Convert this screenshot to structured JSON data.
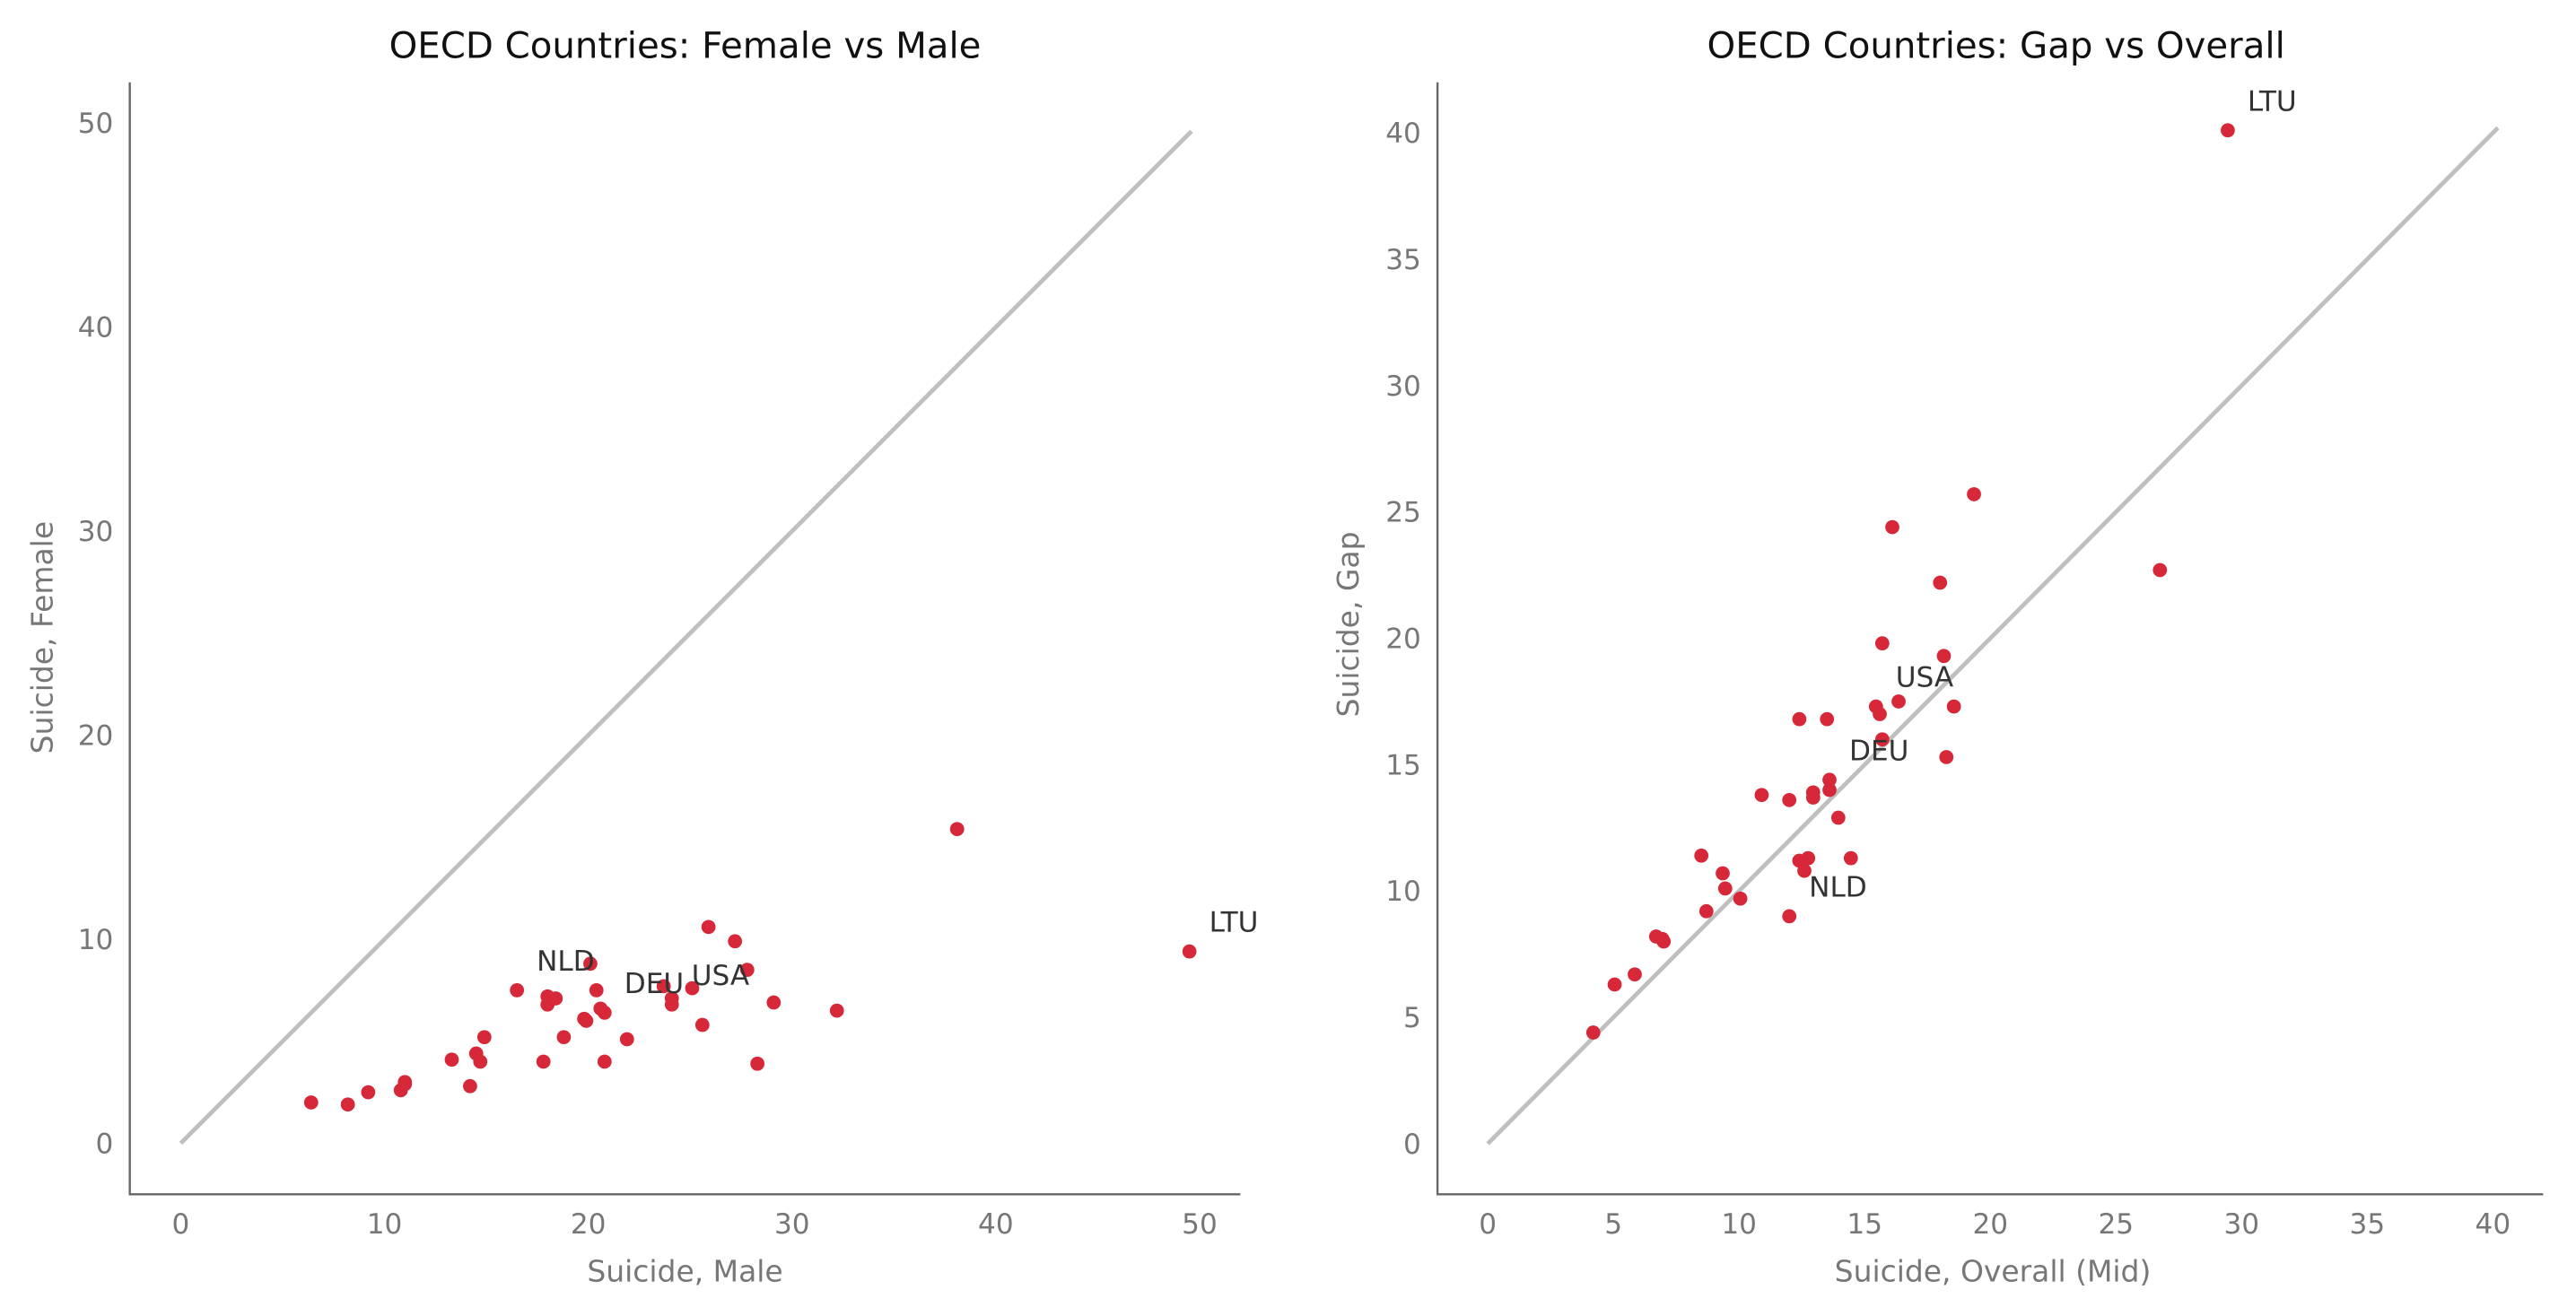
{
  "chart_data": [
    {
      "type": "scatter",
      "title": "OECD Countries: Female vs Male",
      "xlabel": "Suicide, Male",
      "ylabel": "Suicide, Female",
      "xlim": [
        -2.5,
        52
      ],
      "ylim": [
        -2.5,
        52
      ],
      "xticks": [
        0,
        10,
        20,
        30,
        40,
        50
      ],
      "yticks": [
        0,
        10,
        20,
        30,
        40,
        50
      ],
      "reference_line": {
        "from": [
          0,
          0
        ],
        "to": [
          49.6,
          49.6
        ]
      },
      "grid": false,
      "point_color": "#d62839",
      "line_color": "#bfbfbf",
      "points": [
        [
          6.4,
          2.0
        ],
        [
          8.2,
          1.9
        ],
        [
          9.2,
          2.5
        ],
        [
          10.8,
          2.6
        ],
        [
          11.0,
          2.9
        ],
        [
          11.0,
          3.0
        ],
        [
          13.3,
          4.1
        ],
        [
          14.2,
          2.8
        ],
        [
          14.5,
          4.4
        ],
        [
          14.7,
          4.0
        ],
        [
          14.9,
          5.2
        ],
        [
          16.5,
          7.5
        ],
        [
          17.8,
          4.0
        ],
        [
          18.0,
          6.8
        ],
        [
          18.0,
          7.2
        ],
        [
          18.4,
          7.1
        ],
        [
          18.8,
          5.2
        ],
        [
          19.8,
          6.1
        ],
        [
          19.9,
          6.0
        ],
        [
          20.1,
          8.8
        ],
        [
          20.4,
          7.5
        ],
        [
          20.6,
          6.6
        ],
        [
          20.8,
          6.4
        ],
        [
          20.8,
          4.0
        ],
        [
          21.9,
          5.1
        ],
        [
          23.7,
          7.7
        ],
        [
          24.1,
          7.1
        ],
        [
          24.1,
          6.8
        ],
        [
          25.1,
          7.6
        ],
        [
          25.6,
          5.8
        ],
        [
          25.9,
          10.6
        ],
        [
          27.2,
          9.9
        ],
        [
          27.8,
          8.5
        ],
        [
          28.3,
          3.9
        ],
        [
          29.1,
          6.9
        ],
        [
          32.2,
          6.5
        ],
        [
          38.1,
          15.4
        ],
        [
          49.5,
          9.4
        ]
      ],
      "annotations": [
        {
          "label": "NLD",
          "x": 16.5,
          "y": 7.5
        },
        {
          "label": "DEU",
          "x": 20.8,
          "y": 6.4
        },
        {
          "label": "USA",
          "x": 24.1,
          "y": 6.8
        },
        {
          "label": "LTU",
          "x": 49.5,
          "y": 9.4
        }
      ]
    },
    {
      "type": "scatter",
      "title": "OECD Countries: Gap vs Overall",
      "xlabel": "Suicide, Overall (Mid)",
      "ylabel": "Suicide, Gap",
      "xlim": [
        -2,
        42
      ],
      "ylim": [
        -2,
        42
      ],
      "xticks": [
        0,
        5,
        10,
        15,
        20,
        25,
        30,
        35,
        40
      ],
      "yticks": [
        0,
        5,
        10,
        15,
        20,
        25,
        30,
        35,
        40
      ],
      "reference_line": {
        "from": [
          0,
          0
        ],
        "to": [
          40.2,
          40.2
        ]
      },
      "grid": false,
      "point_color": "#d62839",
      "line_color": "#bfbfbf",
      "points": [
        [
          4.2,
          4.4
        ],
        [
          5.05,
          6.3
        ],
        [
          5.85,
          6.7
        ],
        [
          6.7,
          8.2
        ],
        [
          6.95,
          8.1
        ],
        [
          7.0,
          8.0
        ],
        [
          8.7,
          9.2
        ],
        [
          8.5,
          11.4
        ],
        [
          9.45,
          10.1
        ],
        [
          9.35,
          10.7
        ],
        [
          10.05,
          9.7
        ],
        [
          12.0,
          9.0
        ],
        [
          10.9,
          13.8
        ],
        [
          12.4,
          11.2
        ],
        [
          12.6,
          10.8
        ],
        [
          12.75,
          11.3
        ],
        [
          12.0,
          13.6
        ],
        [
          12.95,
          13.7
        ],
        [
          12.95,
          13.9
        ],
        [
          14.45,
          11.3
        ],
        [
          13.95,
          12.9
        ],
        [
          13.6,
          14.0
        ],
        [
          13.6,
          14.4
        ],
        [
          12.4,
          16.8
        ],
        [
          13.5,
          16.8
        ],
        [
          15.7,
          16.0
        ],
        [
          15.6,
          17.0
        ],
        [
          15.45,
          17.3
        ],
        [
          16.35,
          17.5
        ],
        [
          15.7,
          19.8
        ],
        [
          18.25,
          15.3
        ],
        [
          18.55,
          17.3
        ],
        [
          18.15,
          19.3
        ],
        [
          16.1,
          24.4
        ],
        [
          18.0,
          22.2
        ],
        [
          19.35,
          25.7
        ],
        [
          26.75,
          22.7
        ],
        [
          29.45,
          40.1
        ]
      ],
      "annotations": [
        {
          "label": "NLD",
          "x": 12.0,
          "y": 9.0
        },
        {
          "label": "DEU",
          "x": 13.6,
          "y": 14.4
        },
        {
          "label": "USA",
          "x": 15.45,
          "y": 17.3
        },
        {
          "label": "LTU",
          "x": 29.45,
          "y": 40.1
        }
      ]
    }
  ]
}
